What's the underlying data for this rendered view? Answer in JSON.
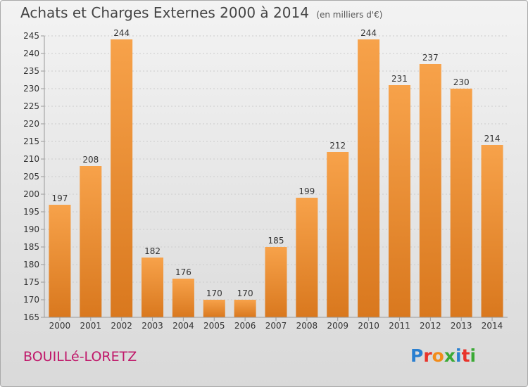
{
  "header": {
    "title": "Achats et Charges Externes 2000 à 2014",
    "subtitle": "(en milliers d'€)"
  },
  "footer": {
    "commune": "BOUILLé-LORETZ",
    "logo_letters": [
      "P",
      "r",
      "o",
      "x",
      "i",
      "t",
      "i"
    ],
    "logo_colors": [
      "#2a7fd0",
      "#e8332a",
      "#f28c1a",
      "#3aa935",
      "#2a7fd0",
      "#e8332a",
      "#3aa935"
    ]
  },
  "colors": {
    "bar_top": "#f7a24a",
    "bar_bottom": "#d9781e",
    "axis": "#999999",
    "grid": "#cccccc",
    "label": "#333333"
  },
  "chart_data": {
    "type": "bar",
    "title": "Achats et Charges Externes 2000 à 2014",
    "subtitle": "(en milliers d'€)",
    "categories": [
      "2000",
      "2001",
      "2002",
      "2003",
      "2004",
      "2005",
      "2006",
      "2007",
      "2008",
      "2009",
      "2010",
      "2011",
      "2012",
      "2013",
      "2014"
    ],
    "values": [
      197,
      208,
      244,
      182,
      176,
      170,
      170,
      185,
      199,
      212,
      244,
      231,
      237,
      230,
      214
    ],
    "ylim": [
      165,
      245
    ],
    "yticks": [
      165,
      170,
      175,
      180,
      185,
      190,
      195,
      200,
      205,
      210,
      215,
      220,
      225,
      230,
      235,
      240,
      245
    ],
    "xlabel": "",
    "ylabel": "",
    "grid": true,
    "data_labels": true
  }
}
